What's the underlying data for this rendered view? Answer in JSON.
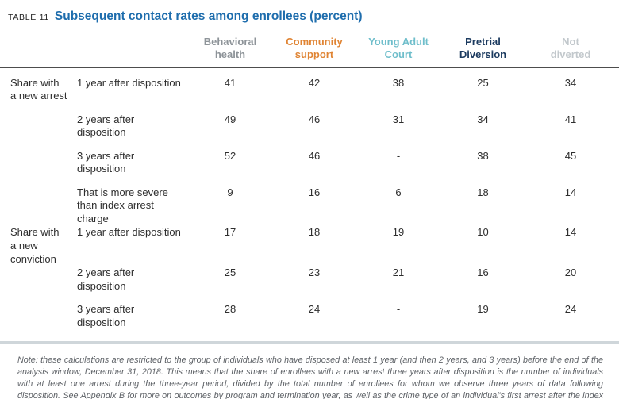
{
  "title": {
    "label": "TABLE 11",
    "text": "Subsequent contact rates among enrollees (percent)",
    "accent_color": "#1e6dad"
  },
  "columns": [
    {
      "label": "Behavioral\nhealth",
      "color": "#8e9499"
    },
    {
      "label": "Community\nsupport",
      "color": "#e08433"
    },
    {
      "label": "Young Adult\nCourt",
      "color": "#6fbecb"
    },
    {
      "label": "Pretrial\nDiversion",
      "color": "#1b3a5f"
    },
    {
      "label": "Not\ndiverted",
      "color": "#c2c8cc"
    }
  ],
  "rows": [
    {
      "group": "Share with\na new arrest",
      "label": "1 year after disposition",
      "values": [
        "41",
        "42",
        "38",
        "25",
        "34"
      ]
    },
    {
      "group": "",
      "label": "2 years after disposition",
      "values": [
        "49",
        "46",
        "31",
        "34",
        "41"
      ]
    },
    {
      "group": "",
      "label": "3 years after disposition",
      "values": [
        "52",
        "46",
        "-",
        "38",
        "45"
      ]
    },
    {
      "group": "",
      "label": "That is more severe\nthan index arrest charge",
      "values": [
        "9",
        "16",
        "6",
        "18",
        "14"
      ]
    },
    {
      "group": "Share with\na new\nconviction",
      "label": "1 year after disposition",
      "values": [
        "17",
        "18",
        "19",
        "10",
        "14"
      ]
    },
    {
      "group": "",
      "label": "2 years after disposition",
      "values": [
        "25",
        "23",
        "21",
        "16",
        "20"
      ]
    },
    {
      "group": "",
      "label": "3 years after disposition",
      "values": [
        "28",
        "24",
        "-",
        "19",
        "24"
      ]
    }
  ],
  "note": "Note: these calculations are restricted to the group of individuals who have disposed at least 1 year (and then 2 years, and 3 years) before the end of the analysis window, December 31, 2018. This means that the share of enrollees with a new arrest three years after disposition is the number of individuals with at least one arrest during the three-year period, divided by the total number of enrollees for whom we observe three years of data following disposition. See Appendix B for more on outcomes by program and termination year, as well as the crime type of an individual's first arrest after the index case disposed."
}
